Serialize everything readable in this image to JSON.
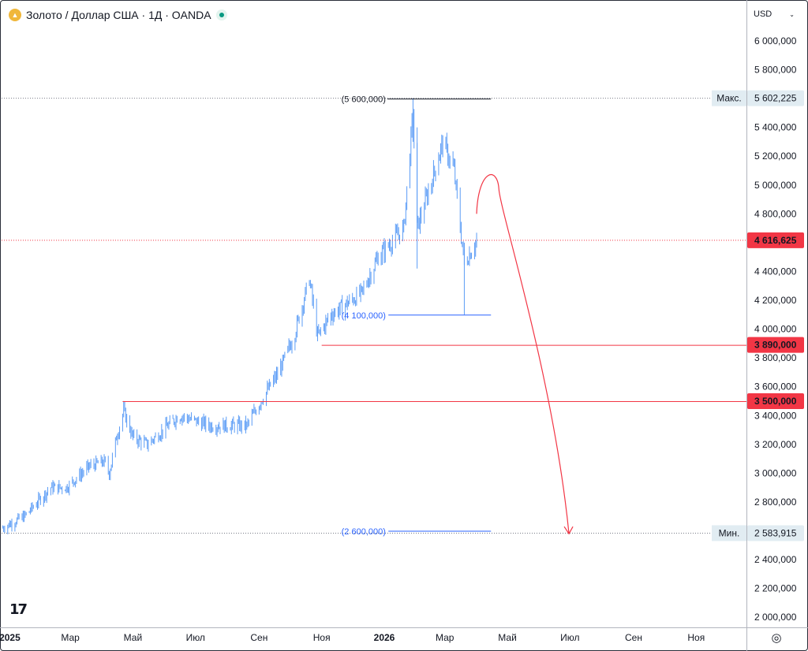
{
  "header": {
    "symbol_title": "Золото / Доллар США · 1Д · OANDA",
    "currency": "USD",
    "logo": "tradingview-logo"
  },
  "colors": {
    "candle": "#5b9cf6",
    "level_line": "#f23645",
    "measure_line": "#2962ff",
    "high_line": "#131722",
    "max_min_label_bg": "#e1ecf2"
  },
  "chart_data": {
    "type": "bar",
    "style": "ohlc",
    "title": "Золото / Доллар США · 1Д · OANDA",
    "x_ticks": [
      "2025",
      "Мар",
      "Май",
      "Июл",
      "Сен",
      "Ноя",
      "2026",
      "Мар",
      "Май",
      "Июл",
      "Сен",
      "Ноя"
    ],
    "y_ticks": [
      "6 000,000",
      "5 800,000",
      "5 600,000",
      "5 400,000",
      "5 200,000",
      "5 000,000",
      "4 800,000",
      "4 600,000",
      "4 400,000",
      "4 200,000",
      "4 000,000",
      "3 800,000",
      "3 600,000",
      "3 400,000",
      "3 200,000",
      "3 000,000",
      "2 800,000",
      "2 600,000",
      "2 400,000",
      "2 200,000",
      "2 000,000"
    ],
    "y_tick_values": [
      6000,
      5800,
      5600,
      5400,
      5200,
      5000,
      4800,
      4600,
      4400,
      4200,
      4000,
      3800,
      3600,
      3400,
      3200,
      3000,
      2800,
      2600,
      2400,
      2200,
      2000
    ],
    "ylim": [
      1930,
      6120
    ],
    "xlim": [
      "2024-12-24",
      "2026-12-20"
    ],
    "price_path": [
      {
        "date": "2024-12-25",
        "close": 2620
      },
      {
        "date": "2025-01-15",
        "close": 2700
      },
      {
        "date": "2025-02-10",
        "close": 2900
      },
      {
        "date": "2025-02-25",
        "close": 2900
      },
      {
        "date": "2025-03-20",
        "close": 3050
      },
      {
        "date": "2025-04-03",
        "close": 3080
      },
      {
        "date": "2025-04-08",
        "close": 3000
      },
      {
        "date": "2025-04-15",
        "close": 3250
      },
      {
        "date": "2025-04-22",
        "close": 3430
      },
      {
        "date": "2025-05-01",
        "close": 3250
      },
      {
        "date": "2025-05-15",
        "close": 3200
      },
      {
        "date": "2025-06-15",
        "close": 3400
      },
      {
        "date": "2025-07-15",
        "close": 3330
      },
      {
        "date": "2025-08-20",
        "close": 3330
      },
      {
        "date": "2025-09-01",
        "close": 3480
      },
      {
        "date": "2025-09-20",
        "close": 3700
      },
      {
        "date": "2025-10-05",
        "close": 3950
      },
      {
        "date": "2025-10-20",
        "close": 4350
      },
      {
        "date": "2025-10-28",
        "close": 3950
      },
      {
        "date": "2025-11-10",
        "close": 4100
      },
      {
        "date": "2025-12-10",
        "close": 4250
      },
      {
        "date": "2025-12-26",
        "close": 4500
      },
      {
        "date": "2026-01-20",
        "close": 4700
      },
      {
        "date": "2026-01-29",
        "close": 5500
      },
      {
        "date": "2026-02-02",
        "close": 4700
      },
      {
        "date": "2026-02-15",
        "close": 5000
      },
      {
        "date": "2026-02-27",
        "close": 5300
      },
      {
        "date": "2026-03-10",
        "close": 5100
      },
      {
        "date": "2026-03-20",
        "close": 4450
      },
      {
        "date": "2026-04-01",
        "close": 4616.625
      }
    ],
    "price_labels": [
      {
        "text": "Макс.",
        "value": 5602.225,
        "value_text": "5 602,225",
        "kind": "max"
      },
      {
        "text": "",
        "value": 4616.625,
        "value_text": "4 616,625",
        "kind": "current"
      },
      {
        "text": "",
        "value": 3890,
        "value_text": "3 890,000",
        "kind": "level"
      },
      {
        "text": "",
        "value": 3500,
        "value_text": "3 500,000",
        "kind": "level"
      },
      {
        "text": "Мин.",
        "value": 2583.915,
        "value_text": "2 583,915",
        "kind": "min"
      }
    ],
    "horizontal_levels": [
      {
        "value": 3890,
        "from": "2025-11-01",
        "kind": "red"
      },
      {
        "value": 3500,
        "from": "2025-04-21",
        "kind": "red"
      }
    ],
    "measure_lines": [
      {
        "value": 5600,
        "label": "(5 600,000)",
        "kind": "black",
        "from": "2026-01-29",
        "to": "2026-04-15"
      },
      {
        "value": 4100,
        "label": "(4 100,000)",
        "kind": "blue",
        "from": "2026-01-05",
        "to": "2026-04-15"
      },
      {
        "value": 2600,
        "label": "(2 600,000)",
        "kind": "blue",
        "from": "2026-01-05",
        "to": "2026-04-15"
      }
    ],
    "projection_arrow": {
      "from": {
        "date": "2026-04-01",
        "value": 4800
      },
      "peak": {
        "date": "2026-04-15",
        "value": 5000
      },
      "to": {
        "date": "2026-06-30",
        "value": 2580
      }
    }
  }
}
